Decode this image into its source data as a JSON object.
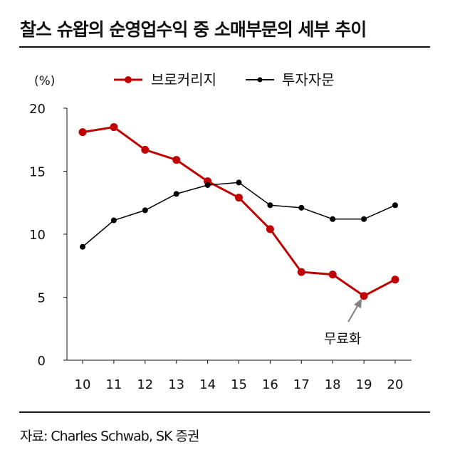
{
  "title": "찰스 슈왑의 순영업수익 중 소매부문의 세부 추이",
  "source": "자료: Charles Schwab, SK 증권",
  "chart_data": {
    "type": "line",
    "title": "찰스 슈왑의 순영업수익 중 소매부문의 세부 추이",
    "ylabel": "(%)",
    "x": [
      "10",
      "11",
      "12",
      "13",
      "14",
      "15",
      "16",
      "17",
      "18",
      "19",
      "20"
    ],
    "ylim": [
      0,
      20
    ],
    "yticks": [
      "0",
      "5",
      "10",
      "15",
      "20"
    ],
    "grid": false,
    "legend": "top",
    "series": [
      {
        "name": "브로커리지",
        "color": "#c00000",
        "values": [
          18.1,
          18.5,
          16.7,
          15.9,
          14.2,
          12.9,
          10.4,
          7.0,
          6.8,
          5.1,
          6.4
        ]
      },
      {
        "name": "투자자문",
        "color": "#000000",
        "values": [
          9.0,
          11.1,
          11.9,
          13.2,
          13.9,
          14.1,
          12.3,
          12.1,
          11.2,
          11.2,
          12.3
        ]
      }
    ],
    "annotations": [
      {
        "text": "무료화",
        "x": "19",
        "arrow_color": "#808080"
      }
    ]
  }
}
